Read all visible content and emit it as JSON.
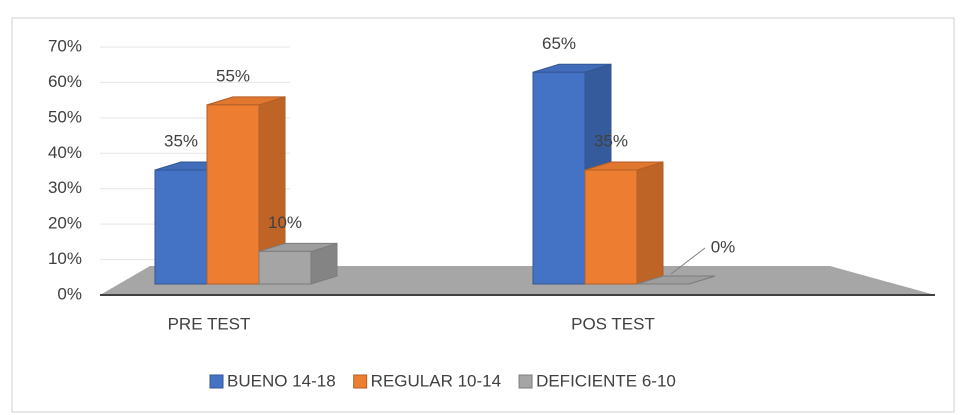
{
  "chart_data": {
    "type": "bar3d",
    "categories": [
      "PRE TEST",
      "POS TEST"
    ],
    "series": [
      {
        "name": "BUENO 14-18",
        "color": "#4472c4",
        "values": [
          35,
          65
        ],
        "value_labels": [
          "35%",
          "65%"
        ]
      },
      {
        "name": "REGULAR 10-14",
        "color": "#ed7d31",
        "values": [
          55,
          35
        ],
        "value_labels": [
          "55%",
          "35%"
        ]
      },
      {
        "name": "DEFICIENTE 6-10",
        "color": "#a5a5a5",
        "values": [
          10,
          0
        ],
        "value_labels": [
          "10%",
          "0%"
        ]
      }
    ],
    "ylim": [
      0,
      70
    ],
    "yticks": [
      {
        "value": 0,
        "label": "0%"
      },
      {
        "value": 10,
        "label": "10%"
      },
      {
        "value": 20,
        "label": "20%"
      },
      {
        "value": 30,
        "label": "30%"
      },
      {
        "value": 40,
        "label": "40%"
      },
      {
        "value": 50,
        "label": "50%"
      },
      {
        "value": 60,
        "label": "60%"
      },
      {
        "value": 70,
        "label": "70%"
      }
    ],
    "grid": true,
    "legend": "bottom"
  }
}
